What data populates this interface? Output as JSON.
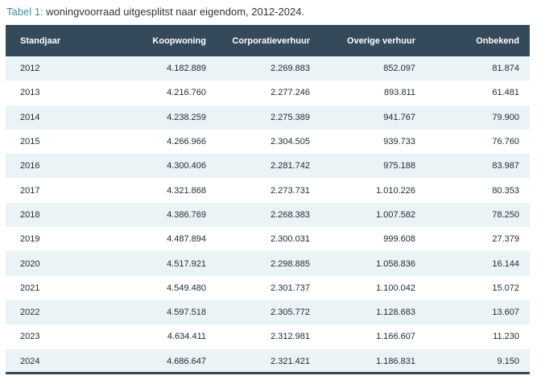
{
  "caption": {
    "label": "Tabel 1:",
    "text": " woningvoorraad uitgesplitst naar eigendom, 2012-2024."
  },
  "table": {
    "headers": [
      "Standjaar",
      "Koopwoning",
      "Corporatieverhuur",
      "Overige verhuur",
      "Onbekend"
    ],
    "rows": [
      [
        "2012",
        "4.182.889",
        "2.269.883",
        "852.097",
        "81.874"
      ],
      [
        "2013",
        "4.216.760",
        "2.277.246",
        "893.811",
        "61.481"
      ],
      [
        "2014",
        "4.238.259",
        "2.275.389",
        "941.767",
        "79.900"
      ],
      [
        "2015",
        "4.266.966",
        "2.304.505",
        "939.733",
        "76.760"
      ],
      [
        "2016",
        "4.300.406",
        "2.281.742",
        "975.188",
        "83.987"
      ],
      [
        "2017",
        "4.321.868",
        "2.273.731",
        "1.010.226",
        "80.353"
      ],
      [
        "2018",
        "4.386.769",
        "2.268.383",
        "1.007.582",
        "78.250"
      ],
      [
        "2019",
        "4.487.894",
        "2.300.031",
        "999.608",
        "27.379"
      ],
      [
        "2020",
        "4.517.921",
        "2.298.885",
        "1.058.836",
        "16.144"
      ],
      [
        "2021",
        "4.549.480",
        "2.301.737",
        "1.100.042",
        "15.072"
      ],
      [
        "2022",
        "4.597.518",
        "2.305.772",
        "1.128.683",
        "13.607"
      ],
      [
        "2023",
        "4.634.411",
        "2.312.981",
        "1.166.607",
        "11.230"
      ],
      [
        "2024",
        "4.686.647",
        "2.321.421",
        "1.186.831",
        "9.150"
      ]
    ]
  },
  "colors": {
    "header_bg": "#34495a",
    "stripe_bg": "#eaf3f5",
    "caption_label": "#3a8fa0"
  }
}
